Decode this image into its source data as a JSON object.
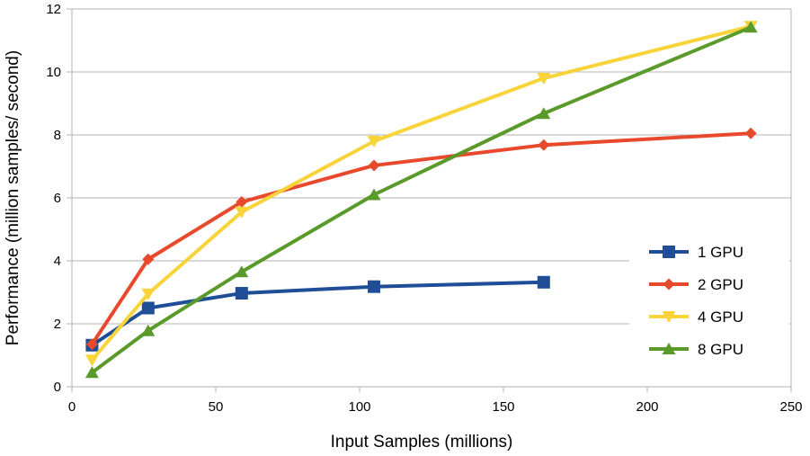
{
  "chart_data": {
    "type": "line",
    "title": "",
    "xlabel": "Input Samples (millions)",
    "ylabel": "Performance (million samples/ second)",
    "xlim": [
      0,
      250
    ],
    "ylim": [
      0,
      12
    ],
    "xticks": [
      0,
      50,
      100,
      150,
      200,
      250
    ],
    "yticks": [
      0,
      2,
      4,
      6,
      8,
      10,
      12
    ],
    "grid": true,
    "legend_position": "right",
    "series": [
      {
        "name": "1 GPU",
        "color": "#1f4e97",
        "marker": "square",
        "x": [
          7,
          26.5,
          59,
          105,
          164
        ],
        "y": [
          1.32,
          2.5,
          2.97,
          3.18,
          3.32
        ]
      },
      {
        "name": "2 GPU",
        "color": "#e8482b",
        "marker": "diamond",
        "x": [
          7,
          26.5,
          59,
          105,
          164,
          236
        ],
        "y": [
          1.35,
          4.05,
          5.87,
          7.03,
          7.68,
          8.05
        ]
      },
      {
        "name": "4 GPU",
        "color": "#f8d43a",
        "marker": "triangle-down",
        "x": [
          7,
          26.5,
          59,
          105,
          164,
          236
        ],
        "y": [
          0.85,
          2.95,
          5.55,
          7.8,
          9.8,
          11.45
        ]
      },
      {
        "name": "8 GPU",
        "color": "#5a9a2a",
        "marker": "triangle-up",
        "x": [
          7,
          26.5,
          59,
          105,
          164,
          236
        ],
        "y": [
          0.45,
          1.78,
          3.65,
          6.1,
          8.68,
          11.42
        ]
      }
    ]
  }
}
